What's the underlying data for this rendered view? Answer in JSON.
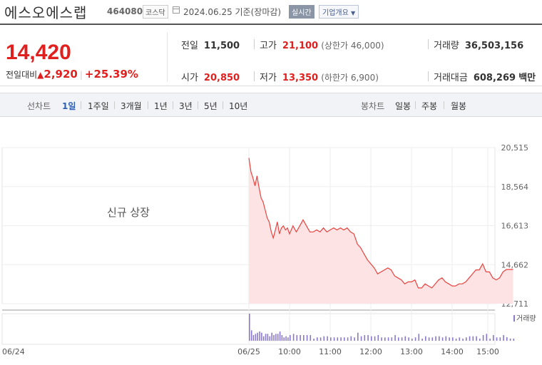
{
  "header": {
    "company": "에스오에스랩",
    "code": "464080",
    "market": "코스닥",
    "date": "2024.06.25 기준(장마감)",
    "realtime_label": "실시간",
    "overview_label": "기업개요"
  },
  "quote": {
    "price": "14,420",
    "change_label": "전일대비",
    "change": "2,920",
    "change_pct": "+25.39%",
    "accent_color": "#e0201e"
  },
  "stats": {
    "prev_close_label": "전일",
    "prev_close": "11,500",
    "open_label": "시가",
    "open": "20,850",
    "high_label": "고가",
    "high": "21,100",
    "upper_limit": "(상한가 46,000)",
    "low_label": "저가",
    "low": "13,350",
    "lower_limit": "(하한가 6,900)",
    "volume_label": "거래량",
    "volume": "36,503,156",
    "amount_label": "거래대금",
    "amount": "608,269",
    "amount_unit": "백만"
  },
  "toolbar": {
    "line_label": "선차트",
    "periods": [
      "1일",
      "1주일",
      "3개월",
      "1년",
      "3년",
      "5년",
      "10년"
    ],
    "active_period": "1일",
    "candle_label": "봉차트",
    "candles": [
      "일봉",
      "주봉",
      "월봉"
    ]
  },
  "chart_data": {
    "type": "area",
    "annotation": "신규 상장",
    "y_ticks": [
      "20,515",
      "18,564",
      "16,613",
      "14,662",
      "12,711"
    ],
    "ylim": [
      12711,
      20515
    ],
    "x_labels": [
      "06/24",
      "06/25",
      "10:00",
      "11:00",
      "12:00",
      "13:00",
      "14:00",
      "15:00"
    ],
    "volume_label": "거래량",
    "line_color": "#e8433f",
    "fill_color": "#fde3e3",
    "volume_color": "#8a79c9",
    "price": [
      [
        "09:00",
        20000
      ],
      [
        "09:03",
        19300
      ],
      [
        "09:06",
        19000
      ],
      [
        "09:09",
        18600
      ],
      [
        "09:12",
        19100
      ],
      [
        "09:15",
        18500
      ],
      [
        "09:18",
        18000
      ],
      [
        "09:21",
        17800
      ],
      [
        "09:24",
        17400
      ],
      [
        "09:27",
        17000
      ],
      [
        "09:30",
        16800
      ],
      [
        "09:33",
        16300
      ],
      [
        "09:36",
        16000
      ],
      [
        "09:39",
        16400
      ],
      [
        "09:42",
        16800
      ],
      [
        "09:45",
        16200
      ],
      [
        "09:48",
        16500
      ],
      [
        "09:51",
        16600
      ],
      [
        "09:54",
        16400
      ],
      [
        "09:57",
        16500
      ],
      [
        "10:00",
        16200
      ],
      [
        "10:05",
        16600
      ],
      [
        "10:10",
        16300
      ],
      [
        "10:15",
        16600
      ],
      [
        "10:20",
        16900
      ],
      [
        "10:25",
        16600
      ],
      [
        "10:30",
        16300
      ],
      [
        "10:35",
        16300
      ],
      [
        "10:40",
        16400
      ],
      [
        "10:45",
        16300
      ],
      [
        "10:50",
        16500
      ],
      [
        "10:55",
        16300
      ],
      [
        "11:00",
        16400
      ],
      [
        "11:05",
        16500
      ],
      [
        "11:10",
        16400
      ],
      [
        "11:15",
        16500
      ],
      [
        "11:20",
        16400
      ],
      [
        "11:25",
        16500
      ],
      [
        "11:30",
        16300
      ],
      [
        "11:35",
        16200
      ],
      [
        "11:40",
        15700
      ],
      [
        "11:45",
        15500
      ],
      [
        "11:50",
        15200
      ],
      [
        "11:55",
        14900
      ],
      [
        "12:00",
        14700
      ],
      [
        "12:05",
        14500
      ],
      [
        "12:10",
        14200
      ],
      [
        "12:15",
        14300
      ],
      [
        "12:20",
        14400
      ],
      [
        "12:25",
        14500
      ],
      [
        "12:30",
        14400
      ],
      [
        "12:35",
        14100
      ],
      [
        "12:40",
        14000
      ],
      [
        "12:45",
        13900
      ],
      [
        "12:50",
        13700
      ],
      [
        "12:55",
        13800
      ],
      [
        "13:00",
        13800
      ],
      [
        "13:05",
        13900
      ],
      [
        "13:10",
        13500
      ],
      [
        "13:15",
        13500
      ],
      [
        "13:20",
        13700
      ],
      [
        "13:25",
        13600
      ],
      [
        "13:30",
        13500
      ],
      [
        "13:35",
        13700
      ],
      [
        "13:40",
        13900
      ],
      [
        "13:45",
        14000
      ],
      [
        "13:50",
        13800
      ],
      [
        "13:55",
        13700
      ],
      [
        "14:00",
        13600
      ],
      [
        "14:05",
        13600
      ],
      [
        "14:10",
        13700
      ],
      [
        "14:15",
        13700
      ],
      [
        "14:20",
        13800
      ],
      [
        "14:25",
        14000
      ],
      [
        "14:30",
        14200
      ],
      [
        "14:35",
        14400
      ],
      [
        "14:40",
        14400
      ],
      [
        "14:45",
        14700
      ],
      [
        "14:50",
        14300
      ],
      [
        "14:55",
        14300
      ],
      [
        "15:00",
        14000
      ],
      [
        "15:05",
        13900
      ],
      [
        "15:10",
        14000
      ],
      [
        "15:15",
        14300
      ],
      [
        "15:20",
        14420
      ],
      [
        "15:25",
        14420
      ],
      [
        "15:30",
        14420
      ]
    ]
  }
}
